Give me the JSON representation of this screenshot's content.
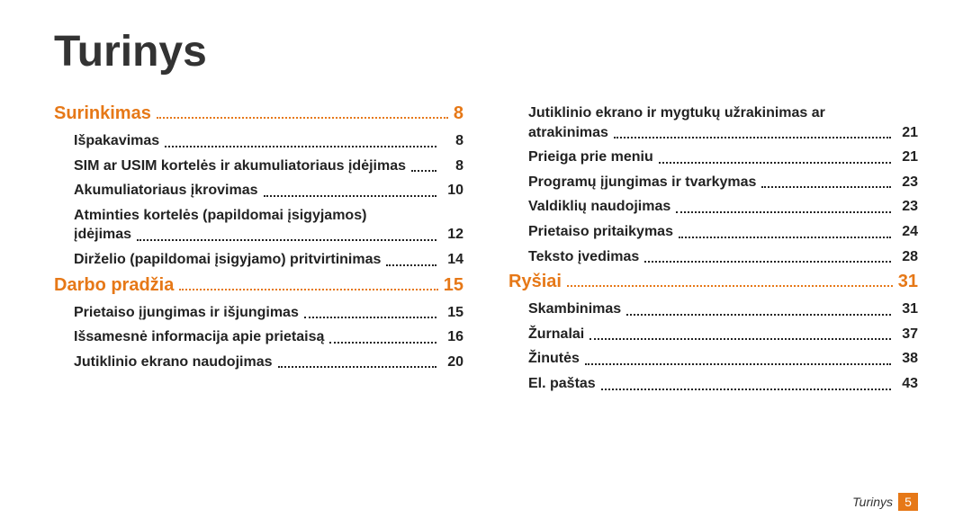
{
  "title": "Turinys",
  "accent_color": "#e67817",
  "text_color": "#222222",
  "footer": {
    "label": "Turinys",
    "page": "5"
  },
  "left": {
    "sections": [
      {
        "label": "Surinkimas",
        "page": "8",
        "items": [
          {
            "label": "Išpakavimas",
            "page": "8"
          },
          {
            "label": "SIM ar USIM kortelės ir akumuliatoriaus įdėjimas",
            "page": "8"
          },
          {
            "label": "Akumuliatoriaus įkrovimas",
            "page": "10"
          },
          {
            "label": "Atminties kortelės (papildomai įsigyjamos) įdėjimas",
            "page": "12"
          },
          {
            "label": "Dirželio (papildomai įsigyjamo) pritvirtinimas",
            "page": "14"
          }
        ]
      },
      {
        "label": "Darbo pradžia",
        "page": "15",
        "items": [
          {
            "label": "Prietaiso įjungimas ir išjungimas",
            "page": "15"
          },
          {
            "label": "Išsamesnė informacija apie prietaisą",
            "page": "16"
          },
          {
            "label": "Jutiklinio ekrano naudojimas",
            "page": "20"
          }
        ]
      }
    ]
  },
  "right": {
    "sections": [
      {
        "label": null,
        "page": null,
        "items": [
          {
            "label": "Jutiklinio ekrano ir mygtukų užrakinimas ar atrakinimas",
            "page": "21"
          },
          {
            "label": "Prieiga prie meniu",
            "page": "21"
          },
          {
            "label": "Programų įjungimas ir tvarkymas",
            "page": "23"
          },
          {
            "label": "Valdiklių naudojimas",
            "page": "23"
          },
          {
            "label": "Prietaiso pritaikymas",
            "page": "24"
          },
          {
            "label": "Teksto įvedimas",
            "page": "28"
          }
        ]
      },
      {
        "label": "Ryšiai",
        "page": "31",
        "items": [
          {
            "label": "Skambinimas",
            "page": "31"
          },
          {
            "label": "Žurnalai",
            "page": "37"
          },
          {
            "label": "Žinutės",
            "page": "38"
          },
          {
            "label": "El. paštas",
            "page": "43"
          }
        ]
      }
    ]
  }
}
